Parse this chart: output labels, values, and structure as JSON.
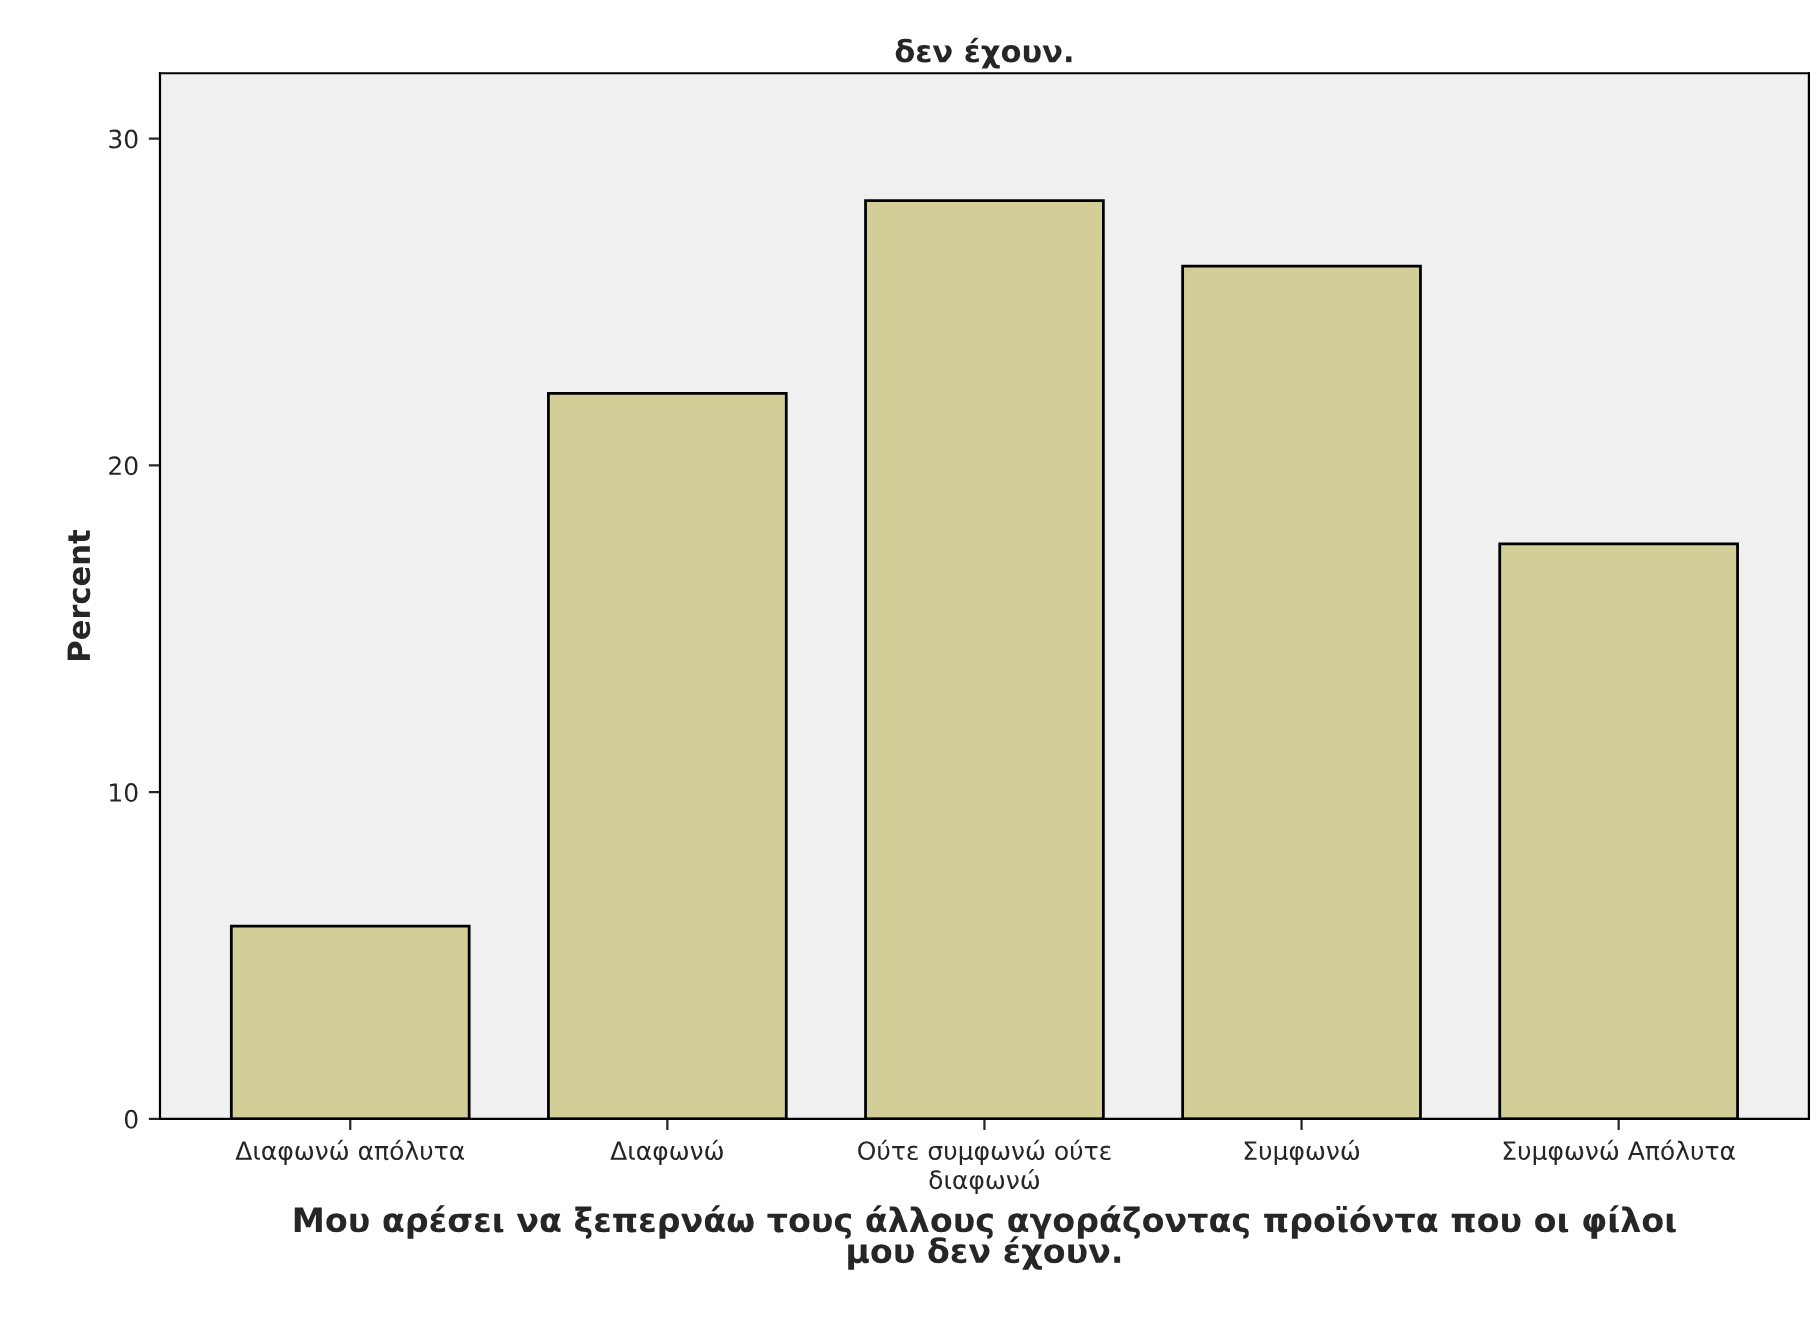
{
  "chart_data": {
    "type": "bar",
    "title": "δεν έχουν.",
    "categories": [
      "Διαφωνώ απόλυτα",
      "Διαφωνώ",
      "Ούτε συμφωνώ ούτε\nδιαφωνώ",
      "Συμφωνώ",
      "Συμφωνώ Απόλυτα"
    ],
    "values": [
      5.9,
      22.2,
      28.1,
      26.1,
      17.6
    ],
    "color": "#d3ce97",
    "xlabel": "Μου αρέσει να ξεπερνάω τους άλλους αγοράζοντας προϊόντα που οι φίλοι\nμου δεν έχουν.",
    "ylabel": "Percent",
    "ylim": [
      0,
      32
    ],
    "yticks": [
      0,
      10,
      20,
      30
    ],
    "grid": false
  }
}
